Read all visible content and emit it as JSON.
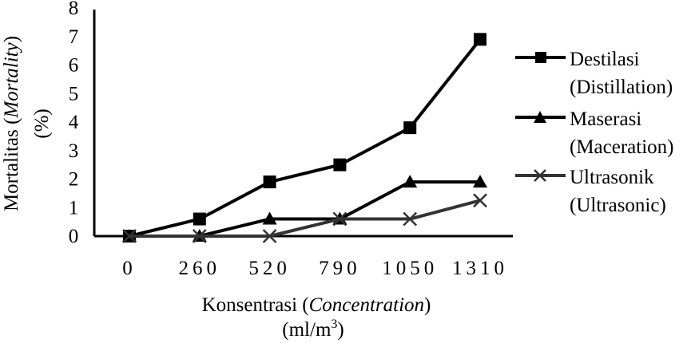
{
  "chart_data": {
    "type": "line",
    "categories": [
      "0",
      "260",
      "520",
      "790",
      "1050",
      "1310"
    ],
    "ylim": [
      0,
      8
    ],
    "yticks": [
      0,
      1,
      2,
      3,
      4,
      5,
      6,
      7,
      8
    ],
    "grid": false,
    "legend_position": "right",
    "ylabel": {
      "line1_prefix": "Mortalitas (",
      "line1_italic": "Mortality",
      "line1_suffix": ")",
      "line2": "(%)"
    },
    "xlabel": {
      "line1_prefix": "Konsentrasi (",
      "line1_italic": "Concentration",
      "line1_suffix": ")",
      "line2_prefix": "(ml/m",
      "line2_sup": "3",
      "line2_suffix": ")"
    },
    "series": [
      {
        "name_line1": "Destilasi",
        "name_line2": "(Distillation)",
        "marker": "square",
        "color": "#000000",
        "values": [
          0,
          0.6,
          1.9,
          2.5,
          3.8,
          6.9
        ]
      },
      {
        "name_line1": "Maserasi",
        "name_line2": "(Maceration)",
        "marker": "triangle",
        "color": "#000000",
        "values": [
          0,
          0,
          0.6,
          0.6,
          1.9,
          1.9
        ]
      },
      {
        "name_line1": "Ultrasonik",
        "name_line2": "(Ultrasonic)",
        "marker": "x",
        "color": "#333333",
        "values": [
          0,
          0,
          0,
          0.6,
          0.6,
          1.25
        ]
      }
    ]
  }
}
